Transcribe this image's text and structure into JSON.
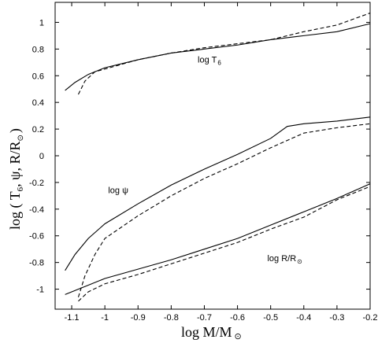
{
  "chart_data": {
    "type": "line",
    "xlabel": "log M/M",
    "xlabel_sub": "⊙",
    "ylabel": "log ( T",
    "ylabel_sub": "6",
    "ylabel_rest": ", ψ, R/R",
    "ylabel_sub2": "⊙",
    "ylabel_end": ")",
    "xlim": [
      -1.15,
      -0.2
    ],
    "ylim": [
      -1.15,
      1.15
    ],
    "xticks": [
      -1.1,
      -1,
      -0.9,
      -0.8,
      -0.7,
      -0.6,
      -0.5,
      -0.4,
      -0.3,
      -0.2
    ],
    "xtick_labels": [
      "-1.1",
      "-1",
      "-0.9",
      "-0.8",
      "-0.7",
      "-0.6",
      "-0.5",
      "-0.4",
      "-0.3",
      "-0.2"
    ],
    "yticks": [
      -1,
      -0.8,
      -0.6,
      -0.4,
      -0.2,
      0,
      0.2,
      0.4,
      0.6,
      0.8,
      1
    ],
    "ytick_labels": [
      "-1",
      "-0.8",
      "-0.6",
      "-0.4",
      "-0.2",
      "0",
      "0.2",
      "0.4",
      "0.6",
      "0.8",
      "1"
    ],
    "grid": false,
    "annotations": [
      {
        "text": "log T",
        "sub": "6",
        "x": -0.72,
        "y": 0.7
      },
      {
        "text": "log ψ",
        "sub": "",
        "x": -0.99,
        "y": -0.28
      },
      {
        "text": "log R/R",
        "sub": "⊙",
        "x": -0.51,
        "y": -0.79
      }
    ],
    "series": [
      {
        "style": "solid",
        "x": [
          -1.12,
          -1.09,
          -1.05,
          -1.0,
          -0.9,
          -0.8,
          -0.7,
          -0.6,
          -0.5,
          -0.4,
          -0.3,
          -0.2
        ],
        "y": [
          0.49,
          0.55,
          0.61,
          0.66,
          0.72,
          0.77,
          0.8,
          0.83,
          0.87,
          0.9,
          0.93,
          0.99
        ]
      },
      {
        "style": "dashed",
        "x": [
          -1.08,
          -1.06,
          -1.03,
          -1.0,
          -0.9,
          -0.8,
          -0.7,
          -0.6,
          -0.5,
          -0.4,
          -0.3,
          -0.2
        ],
        "y": [
          0.46,
          0.56,
          0.63,
          0.65,
          0.72,
          0.77,
          0.81,
          0.84,
          0.87,
          0.93,
          0.98,
          1.07
        ]
      },
      {
        "style": "solid",
        "x": [
          -1.12,
          -1.09,
          -1.05,
          -1.0,
          -0.9,
          -0.8,
          -0.7,
          -0.6,
          -0.5,
          -0.45,
          -0.4,
          -0.3,
          -0.2
        ],
        "y": [
          -0.86,
          -0.74,
          -0.62,
          -0.51,
          -0.36,
          -0.22,
          -0.1,
          0.01,
          0.13,
          0.22,
          0.24,
          0.26,
          0.29
        ]
      },
      {
        "style": "dashed",
        "x": [
          -1.08,
          -1.06,
          -1.03,
          -1.0,
          -0.9,
          -0.8,
          -0.7,
          -0.6,
          -0.5,
          -0.4,
          -0.3,
          -0.2
        ],
        "y": [
          -1.06,
          -0.9,
          -0.74,
          -0.62,
          -0.45,
          -0.3,
          -0.17,
          -0.06,
          0.06,
          0.17,
          0.21,
          0.24
        ]
      },
      {
        "style": "solid",
        "x": [
          -1.12,
          -1.05,
          -1.0,
          -0.9,
          -0.8,
          -0.7,
          -0.6,
          -0.5,
          -0.4,
          -0.3,
          -0.2
        ],
        "y": [
          -1.04,
          -0.97,
          -0.92,
          -0.85,
          -0.78,
          -0.7,
          -0.62,
          -0.52,
          -0.42,
          -0.32,
          -0.21
        ]
      },
      {
        "style": "dashed",
        "x": [
          -1.08,
          -1.05,
          -1.0,
          -0.9,
          -0.8,
          -0.7,
          -0.6,
          -0.5,
          -0.4,
          -0.3,
          -0.2
        ],
        "y": [
          -1.09,
          -1.02,
          -0.96,
          -0.89,
          -0.81,
          -0.73,
          -0.65,
          -0.55,
          -0.46,
          -0.33,
          -0.23
        ]
      }
    ]
  }
}
